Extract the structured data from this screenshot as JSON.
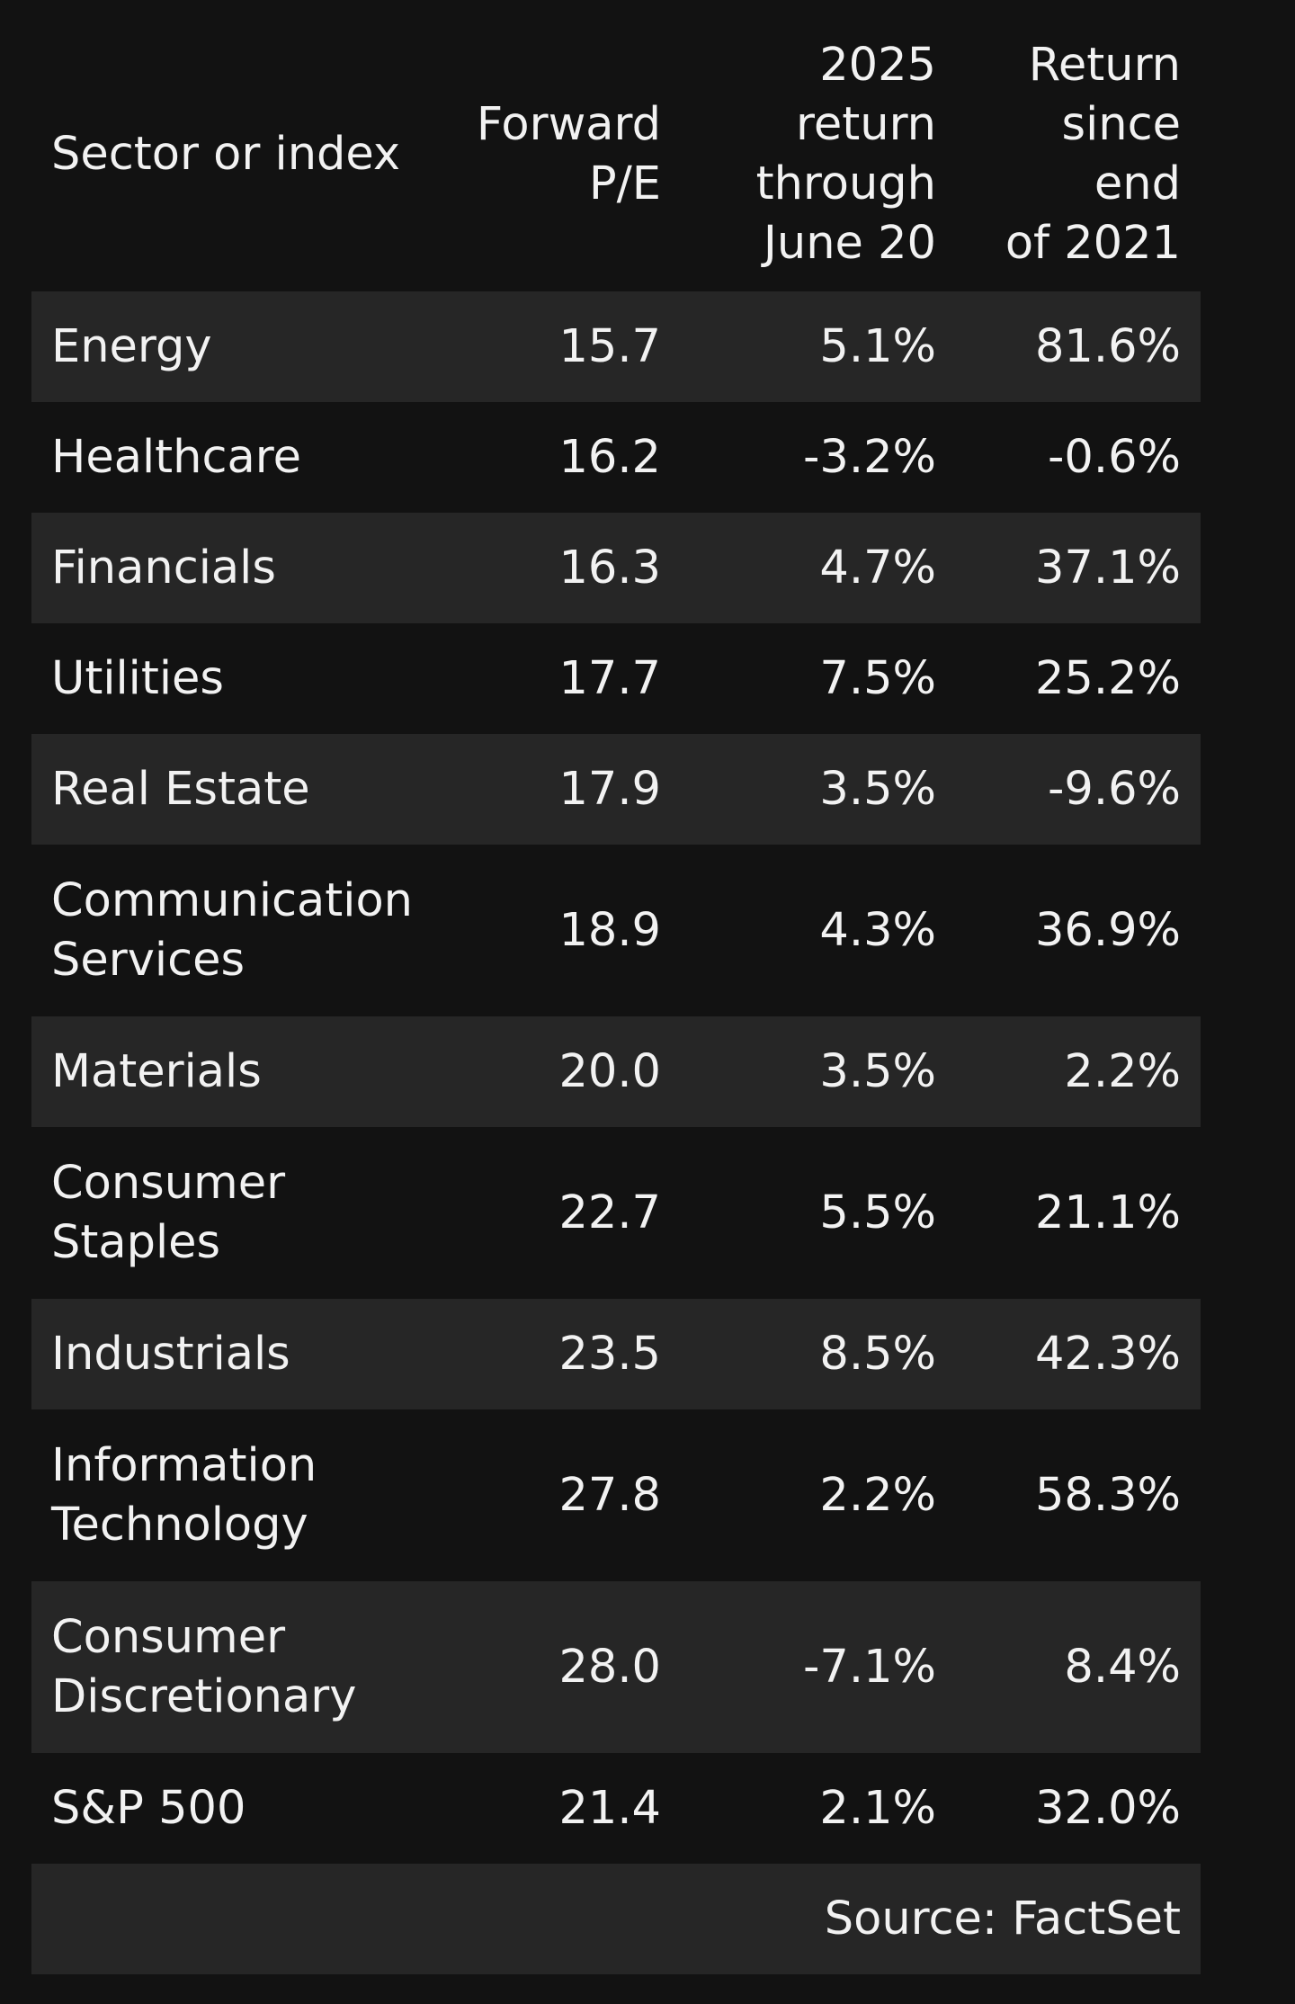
{
  "chart_data": {
    "type": "table",
    "columns": [
      [
        "Sector or index"
      ],
      [
        "Forward",
        "P/E"
      ],
      [
        "2025",
        "return",
        "through",
        "June 20"
      ],
      [
        "Return",
        "since end",
        "of 2021"
      ]
    ],
    "rows": [
      {
        "name": [
          "Energy"
        ],
        "forward_pe": "15.7",
        "return_2025": "5.1%",
        "return_since_2021": "81.6%"
      },
      {
        "name": [
          "Healthcare"
        ],
        "forward_pe": "16.2",
        "return_2025": "-3.2%",
        "return_since_2021": "-0.6%"
      },
      {
        "name": [
          "Financials"
        ],
        "forward_pe": "16.3",
        "return_2025": "4.7%",
        "return_since_2021": "37.1%"
      },
      {
        "name": [
          "Utilities"
        ],
        "forward_pe": "17.7",
        "return_2025": "7.5%",
        "return_since_2021": "25.2%"
      },
      {
        "name": [
          "Real Estate"
        ],
        "forward_pe": "17.9",
        "return_2025": "3.5%",
        "return_since_2021": "-9.6%"
      },
      {
        "name": [
          "Communication",
          "Services"
        ],
        "forward_pe": "18.9",
        "return_2025": "4.3%",
        "return_since_2021": "36.9%"
      },
      {
        "name": [
          "Materials"
        ],
        "forward_pe": "20.0",
        "return_2025": "3.5%",
        "return_since_2021": "2.2%"
      },
      {
        "name": [
          "Consumer",
          "Staples"
        ],
        "forward_pe": "22.7",
        "return_2025": "5.5%",
        "return_since_2021": "21.1%"
      },
      {
        "name": [
          "Industrials"
        ],
        "forward_pe": "23.5",
        "return_2025": "8.5%",
        "return_since_2021": "42.3%"
      },
      {
        "name": [
          "Information",
          "Technology"
        ],
        "forward_pe": "27.8",
        "return_2025": "2.2%",
        "return_since_2021": "58.3%"
      },
      {
        "name": [
          "Consumer",
          "Discretionary"
        ],
        "forward_pe": "28.0",
        "return_2025": "-7.1%",
        "return_since_2021": "8.4%"
      },
      {
        "name": [
          "S&P 500"
        ],
        "forward_pe": "21.4",
        "return_2025": "2.1%",
        "return_since_2021": "32.0%"
      }
    ],
    "source": "Source: FactSet"
  },
  "colors": {
    "background": "#121212",
    "row_band": "#262626",
    "text": "#f2f2f2"
  }
}
